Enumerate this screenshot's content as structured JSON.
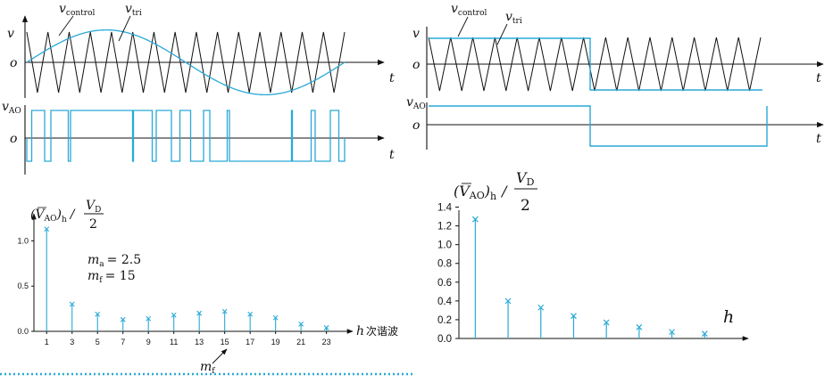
{
  "colors": {
    "cyan": "#29a9d6",
    "black": "#111111"
  },
  "panel_a": {
    "v_label": "v",
    "o_label": "o",
    "t_label": "t",
    "vcontrol_v": "v",
    "vcontrol_sub": "control",
    "vtri_v": "v",
    "vtri_sub": "tri",
    "vao_v": "v",
    "vao_sub": "AO",
    "o2_label": "o",
    "t2_label": "t",
    "carrier_cycles": 15,
    "control_shape": "sine"
  },
  "panel_b": {
    "v_label": "v",
    "o_label": "o",
    "t_label": "t",
    "vcontrol_v": "v",
    "vcontrol_sub": "control",
    "vtri_v": "v",
    "vtri_sub": "tri",
    "vao_v": "v",
    "vao_sub": "AO",
    "o2_label": "o",
    "t2_label": "t",
    "carrier_cycles": 15,
    "control_shape": "square"
  },
  "spectrum_a": {
    "ylabel_main": "(V",
    "ylabel_sub": "AO",
    "ylabel_h": "h",
    "ylabel_slash": "/",
    "frac_num_v": "V",
    "frac_num_sub": "D",
    "frac_den": "2",
    "xlabel_h": "h",
    "xlabel_text": "次谐波",
    "ma_m": "m",
    "ma_sub": "a",
    "ma_eq": "= 2.5",
    "mf_m": "m",
    "mf_sub": "f",
    "mf_eq": "= 15",
    "arrow_m": "m",
    "arrow_sub": "f",
    "chart_data": {
      "type": "stem",
      "x": [
        1,
        3,
        5,
        7,
        9,
        11,
        13,
        15,
        17,
        19,
        21,
        23
      ],
      "y": [
        1.13,
        0.3,
        0.19,
        0.13,
        0.14,
        0.18,
        0.2,
        0.22,
        0.19,
        0.15,
        0.08,
        0.04
      ],
      "xlim": [
        0,
        24.5
      ],
      "ylim": [
        0,
        1.3
      ],
      "x_ticks": [
        "1",
        "3",
        "5",
        "7",
        "9",
        "11",
        "13",
        "15",
        "17",
        "19",
        "21",
        "23"
      ],
      "y_ticks": [
        "0.0",
        "0.5",
        "1.0"
      ],
      "y_tick_values": [
        0,
        0.5,
        1.0
      ],
      "marker": "x"
    }
  },
  "spectrum_b": {
    "ylabel_main": "(V",
    "ylabel_sub": "AO",
    "ylabel_h": "h",
    "ylabel_slash": "/",
    "frac_num_v": "V",
    "frac_num_sub": "D",
    "frac_den": "2",
    "xlabel_h": "h",
    "chart_data": {
      "type": "stem",
      "x": [
        1,
        3,
        5,
        7,
        9,
        11,
        13,
        15
      ],
      "y": [
        1.27,
        0.4,
        0.33,
        0.24,
        0.17,
        0.12,
        0.07,
        0.05
      ],
      "xlim": [
        0,
        17
      ],
      "ylim": [
        0,
        1.5
      ],
      "y_ticks": [
        "0.0",
        "0.2",
        "0.4",
        "0.6",
        "0.8",
        "1.0",
        "1.2",
        "1.4"
      ],
      "y_tick_values": [
        0,
        0.2,
        0.4,
        0.6,
        0.8,
        1.0,
        1.2,
        1.4
      ],
      "marker": "x"
    }
  }
}
